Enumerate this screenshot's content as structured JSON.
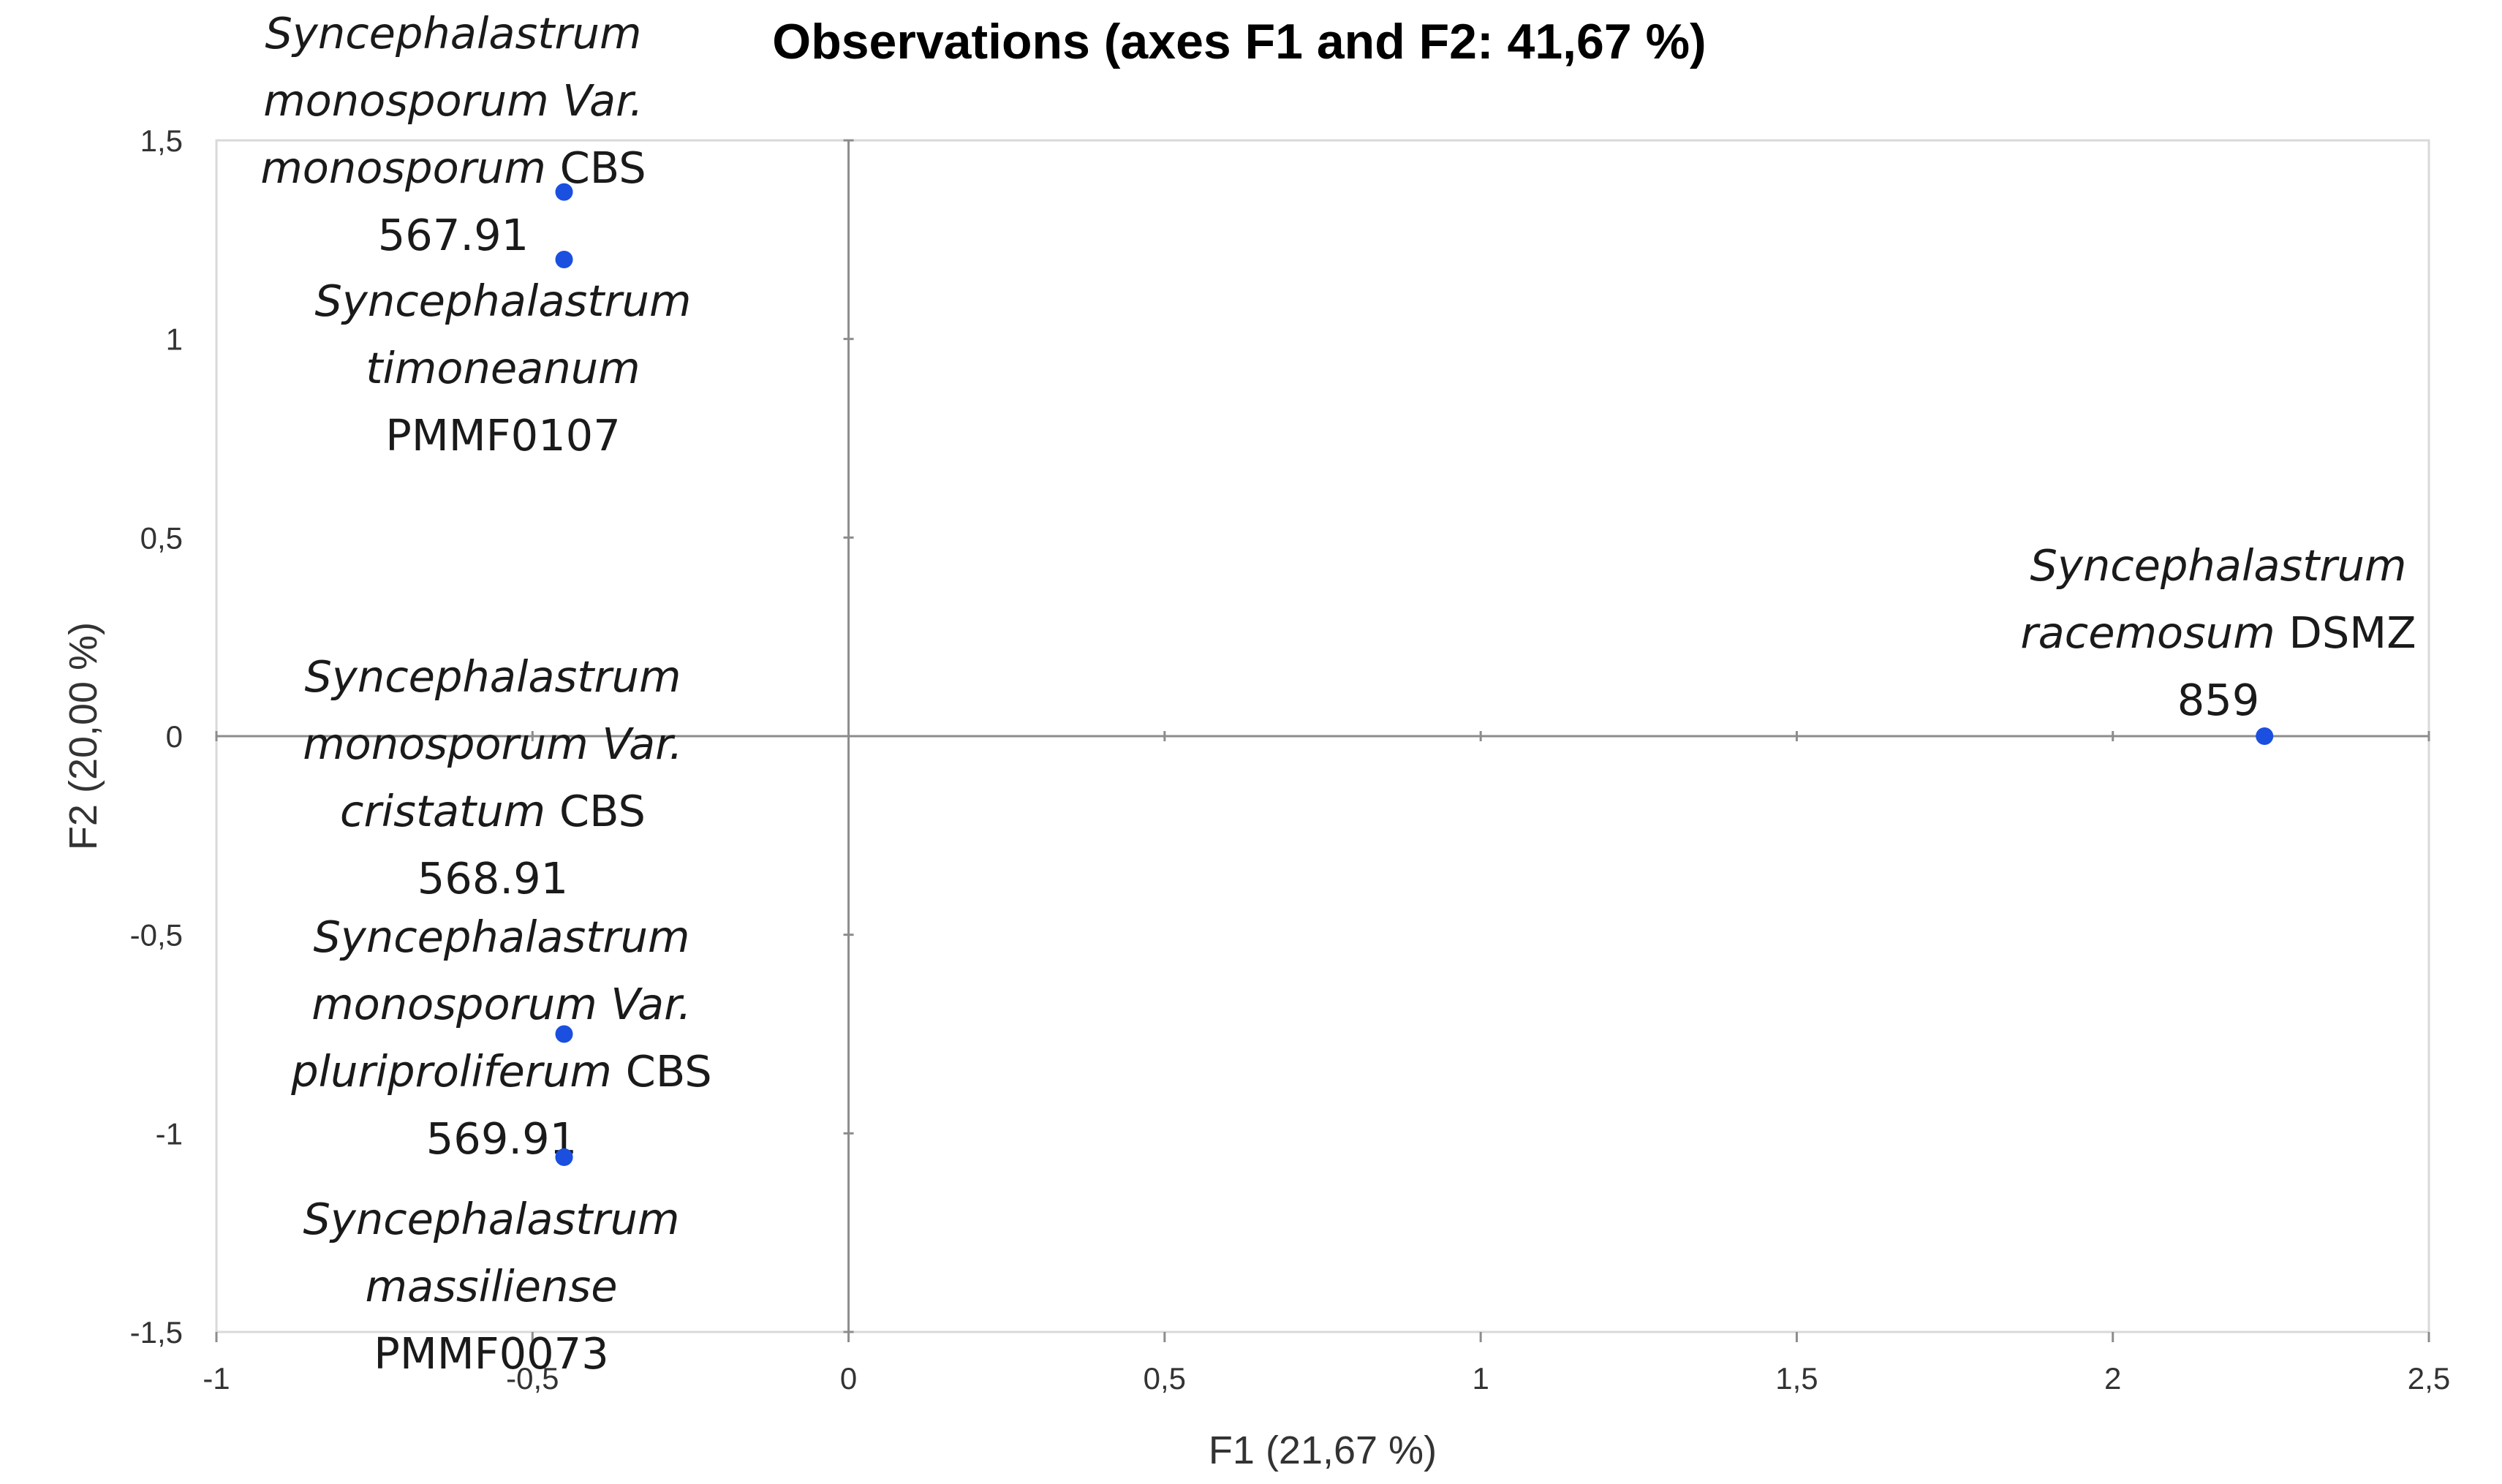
{
  "chart_data": {
    "type": "scatter",
    "title": "Observations (axes F1 and F2: 41,67 %)",
    "xlabel": "F1 (21,67 %)",
    "ylabel": "F2 (20,00 %)",
    "xlim": [
      -1,
      2.5
    ],
    "ylim": [
      -1.5,
      1.5
    ],
    "x_ticks": [
      "-1",
      "-0,5",
      "0",
      "0,5",
      "1",
      "1,5",
      "2",
      "2,5"
    ],
    "y_ticks": [
      "1,5",
      "1",
      "0,5",
      "0",
      "-0,5",
      "-1",
      "-1,5"
    ],
    "grid": false,
    "point_color": "#1a4fe0",
    "points": [
      {
        "x": -0.45,
        "y": 1.37,
        "label_lines": [
          [
            {
              "text": "Syncephalastrum",
              "italic": true
            }
          ],
          [
            {
              "text": "monosporum Var.",
              "italic": true
            }
          ],
          [
            {
              "text": "monosporum",
              "italic": true
            },
            {
              "text": " CBS",
              "italic": false
            }
          ],
          [
            {
              "text": "567.91",
              "italic": false
            }
          ]
        ]
      },
      {
        "x": -0.45,
        "y": 1.2,
        "label_lines": [
          [
            {
              "text": "Syncephalastrum",
              "italic": true
            }
          ],
          [
            {
              "text": "timoneanum",
              "italic": true
            }
          ],
          [
            {
              "text": "PMMF0107",
              "italic": false
            }
          ]
        ]
      },
      {
        "x": -0.45,
        "y": -0.75,
        "label_lines": [
          [
            {
              "text": "Syncephalastrum",
              "italic": true
            }
          ],
          [
            {
              "text": "monosporum Var.",
              "italic": true
            }
          ],
          [
            {
              "text": "cristatum",
              "italic": true
            },
            {
              "text": " CBS",
              "italic": false
            }
          ],
          [
            {
              "text": "568.91",
              "italic": false
            }
          ]
        ]
      },
      {
        "x": -0.45,
        "y": -1.06,
        "label_lines": [
          [
            {
              "text": "Syncephalastrum",
              "italic": true
            }
          ],
          [
            {
              "text": "monosporum Var.",
              "italic": true
            }
          ],
          [
            {
              "text": "pluriproliferum",
              "italic": true
            },
            {
              "text": " CBS",
              "italic": false
            }
          ],
          [
            {
              "text": "569.91",
              "italic": false
            }
          ]
        ]
      },
      {
        "x": -0.45,
        "y": -1.06,
        "label_lines": [
          [
            {
              "text": "Syncephalastrum",
              "italic": true
            }
          ],
          [
            {
              "text": "massiliense",
              "italic": true
            }
          ],
          [
            {
              "text": "PMMF0073",
              "italic": false
            }
          ]
        ]
      },
      {
        "x": 2.24,
        "y": 0.0,
        "label_lines": [
          [
            {
              "text": "Syncephalastrum",
              "italic": true
            }
          ],
          [
            {
              "text": "racemosum",
              "italic": true
            },
            {
              "text": " DSMZ",
              "italic": false
            }
          ],
          [
            {
              "text": "859",
              "italic": false
            }
          ]
        ]
      }
    ]
  }
}
